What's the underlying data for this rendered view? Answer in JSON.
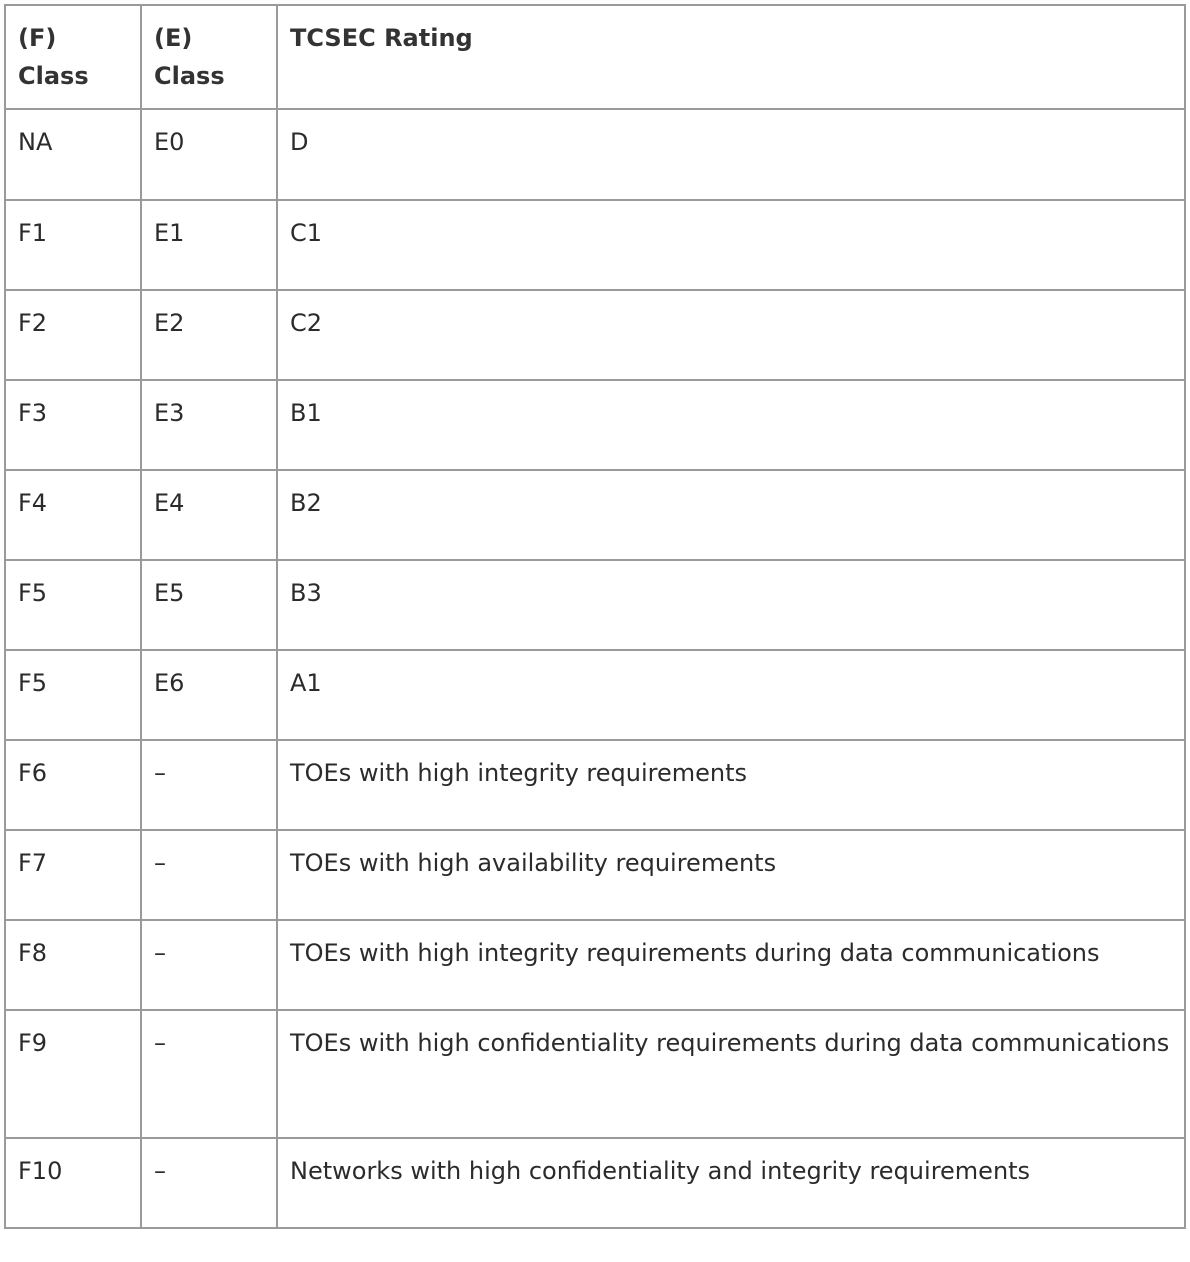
{
  "table": {
    "headers": [
      {
        "line1": "(F)",
        "line2": "Class"
      },
      {
        "line1": "(E)",
        "line2": "Class"
      },
      {
        "line1": "TCSEC Rating",
        "line2": ""
      }
    ],
    "rows": [
      [
        "NA",
        "E0",
        "D"
      ],
      [
        "F1",
        "E1",
        "C1"
      ],
      [
        "F2",
        "E2",
        "C2"
      ],
      [
        "F3",
        "E3",
        "B1"
      ],
      [
        "F4",
        "E4",
        "B2"
      ],
      [
        "F5",
        "E5",
        "B3"
      ],
      [
        "F5",
        "E6",
        "A1"
      ],
      [
        "F6",
        "–",
        "TOEs with high integrity requirements"
      ],
      [
        "F7",
        "–",
        "TOEs with high availability requirements"
      ],
      [
        "F8",
        "–",
        "TOEs with high integrity requirements during data communications"
      ],
      [
        "F9",
        "–",
        "TOEs with high confidentiality requirements during data communications"
      ],
      [
        "F10",
        "–",
        "Networks with high confidentiality and integrity requirements"
      ]
    ]
  }
}
